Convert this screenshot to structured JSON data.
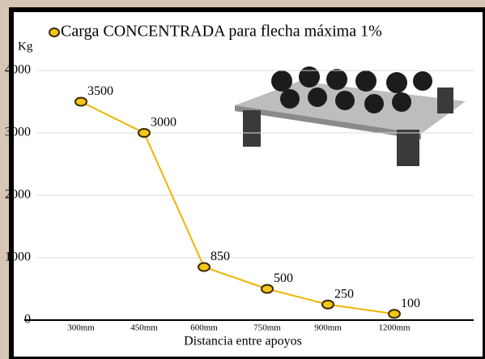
{
  "chart_data": {
    "type": "line",
    "title": "Carga CONCENTRADA para flecha máxima 1%",
    "y_label": "Kg",
    "x_label": "Distancia entre apoyos",
    "categories": [
      "300mm",
      "450mm",
      "600mm",
      "750mm",
      "900mm",
      "1200mm"
    ],
    "series": [
      {
        "name": "Carga CONCENTRADA para flecha máxima 1%",
        "color": "#f0b400",
        "values": [
          3500,
          3000,
          850,
          500,
          250,
          100
        ]
      }
    ],
    "ylim": [
      0,
      4000
    ],
    "yticks": [
      0,
      1000,
      2000,
      3000,
      4000
    ],
    "grid": true
  }
}
